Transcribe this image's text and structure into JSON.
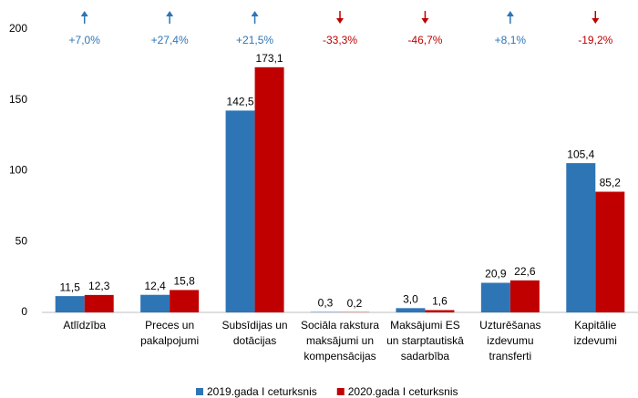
{
  "chart_data": {
    "type": "bar",
    "categories": [
      "Atlīdzība",
      "Preces un\npakalpojumi",
      "Subsīdijas un\ndotācijas",
      "Sociāla rakstura\nmaksājumi un\nkompensācijas",
      "Maksājumi ES\nun starptautiskā\nsadarbība",
      "Uzturēšanas\nizdevumu\ntransferti",
      "Kapitālie\nizdevumi"
    ],
    "series": [
      {
        "name": "2019.gada I ceturksnis",
        "color": "#2e75b6",
        "values": [
          11.5,
          12.4,
          142.5,
          0.3,
          3.0,
          20.9,
          105.4
        ],
        "value_labels": [
          "11,5",
          "12,4",
          "142,5",
          "0,3",
          "3,0",
          "20,9",
          "105,4"
        ]
      },
      {
        "name": "2020.gada I ceturksnis",
        "color": "#c00000",
        "values": [
          12.3,
          15.8,
          173.1,
          0.2,
          1.6,
          22.6,
          85.2
        ],
        "value_labels": [
          "12,3",
          "15,8",
          "173,1",
          "0,2",
          "1,6",
          "22,6",
          "85,2"
        ]
      }
    ],
    "changes": {
      "values": [
        7.0,
        27.4,
        21.5,
        -33.3,
        -46.7,
        8.1,
        -19.2
      ],
      "value_labels": [
        "+7,0%",
        "+27,4%",
        "+21,5%",
        "-33,3%",
        "-46,7%",
        "+8,1%",
        "-19,2%"
      ],
      "up_color": "#2e75b6",
      "down_color": "#c00000"
    },
    "ylim": [
      0,
      200
    ],
    "yticks": [
      0,
      50,
      100,
      150,
      200
    ],
    "grid": false,
    "legend": "bottom"
  }
}
